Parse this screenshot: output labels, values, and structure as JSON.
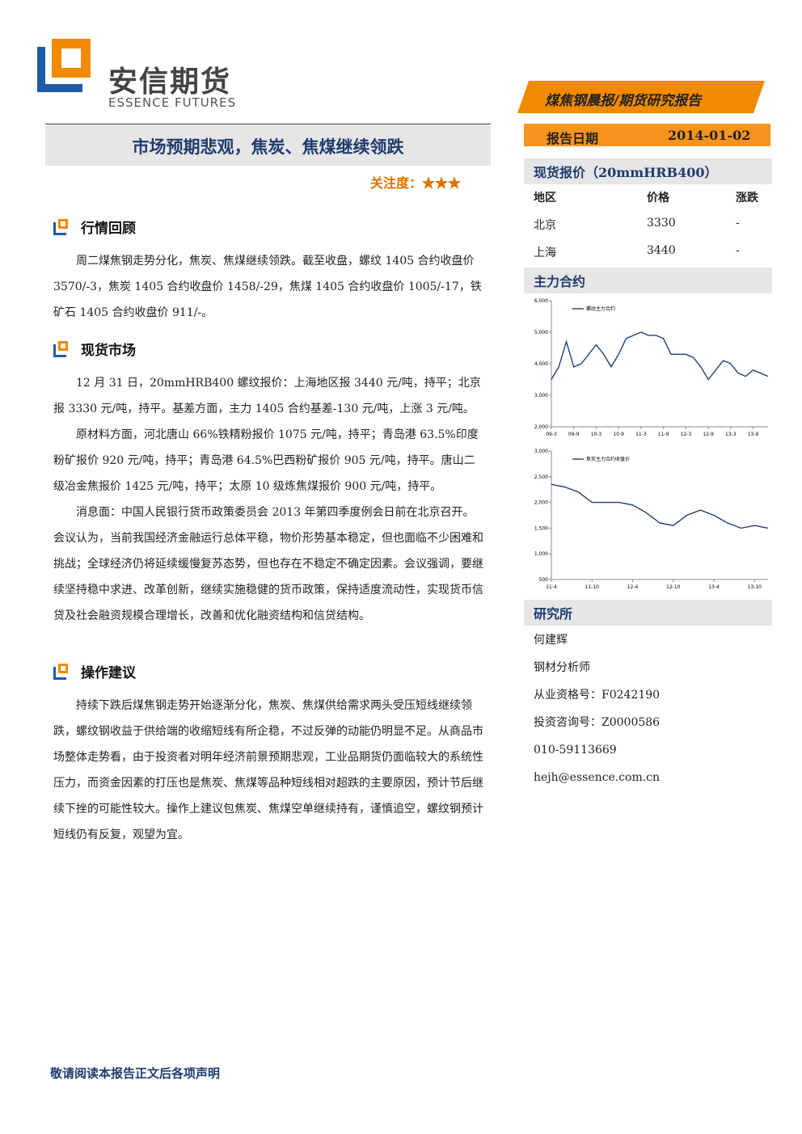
{
  "header": {
    "logo_cn": "安信期货",
    "logo_en": "ESSENCE FUTURES",
    "report_type": "煤焦钢晨报/期货研究报告",
    "date_label": "报告日期",
    "date": "2014-01-02"
  },
  "title": "市场预期悲观，焦炭、焦煤继续领跌",
  "attention": "关注度：★★★",
  "sections": [
    {
      "heading": "行情回顾",
      "paragraphs": [
        "周二煤焦钢走势分化，焦炭、焦煤继续领跌。截至收盘，螺纹 1405 合约收盘价 3570/-3，焦炭 1405 合约收盘价 1458/-29，焦煤 1405 合约收盘价 1005/-17，铁矿石 1405 合约收盘价 911/-。"
      ]
    },
    {
      "heading": "现货市场",
      "paragraphs": [
        "12 月 31 日，20mmHRB400 螺纹报价：上海地区报 3440 元/吨，持平；北京报 3330 元/吨，持平。基差方面，主力 1405 合约基差-130 元/吨，上涨 3 元/吨。",
        "原材料方面，河北唐山 66%铁精粉报价 1075 元/吨，持平；青岛港 63.5%印度粉矿报价 920 元/吨，持平；青岛港 64.5%巴西粉矿报价 905 元/吨，持平。唐山二级冶金焦报价 1425 元/吨，持平；太原 10 级炼焦煤报价 900 元/吨，持平。",
        "消息面：中国人民银行货币政策委员会 2013 年第四季度例会日前在北京召开。会议认为，当前我国经济金融运行总体平稳，物价形势基本稳定，但也面临不少困难和挑战；全球经济仍将延续缓慢复苏态势，但也存在不稳定不确定因素。会议强调，要继续坚持稳中求进、改革创新，继续实施稳健的货币政策，保持适度流动性，实现货币信贷及社会融资规模合理增长，改善和优化融资结构和信贷结构。"
      ]
    },
    {
      "heading": "操作建议",
      "paragraphs": [
        "持续下跌后煤焦钢走势开始逐渐分化，焦炭、焦煤供给需求两头受压短线继续领跌，螺纹钢收益于供给端的收缩短线有所企稳，不过反弹的动能仍明显不足。从商品市场整体走势看，由于投资者对明年经济前景预期悲观，工业品期货仍面临较大的系统性压力，而资金因素的打压也是焦炭、焦煤等品种短线相对超跌的主要原因，预计节后继续下挫的可能性较大。操作上建议包焦炭、焦煤空单继续持有，谨慎追空，螺纹钢预计短线仍有反复，观望为宜。"
      ]
    }
  ],
  "spot": {
    "heading": "现货报价（20mmHRB400）",
    "columns": [
      "地区",
      "价格",
      "涨跌"
    ],
    "rows": [
      [
        "北京",
        3330,
        "-"
      ],
      [
        "上海",
        3440,
        "-"
      ]
    ]
  },
  "contract_heading": "主力合约",
  "charts": [
    {
      "type": "line",
      "categories": [
        "09-3",
        null,
        null,
        "09-9",
        null,
        null,
        "10-3",
        null,
        null,
        "10-9",
        null,
        null,
        "11-3",
        null,
        null,
        "11-9",
        null,
        null,
        "12-3",
        null,
        null,
        "12-9",
        null,
        null,
        "13-3",
        null,
        null,
        "13-9",
        null,
        null
      ],
      "series": [
        {
          "name": "螺纹主力合约",
          "color": "#1f3f7a",
          "values": [
            3500,
            3900,
            4700,
            3900,
            4000,
            4300,
            4600,
            4300,
            3900,
            4300,
            4800,
            4900,
            5000,
            4900,
            4900,
            4800,
            4300,
            4300,
            4300,
            4200,
            3900,
            3500,
            3800,
            4100,
            4000,
            3700,
            3600,
            3800,
            3700,
            3600
          ]
        }
      ],
      "ylim": [
        2000,
        6000
      ],
      "yticks": [
        {
          "value": 2000,
          "label": "2,000"
        },
        {
          "value": 3000,
          "label": "3,000"
        },
        {
          "value": 4000,
          "label": "4,000"
        },
        {
          "value": 5000,
          "label": "5,000"
        },
        {
          "value": 6000,
          "label": "6,000"
        }
      ]
    },
    {
      "type": "line",
      "categories": [
        "11-4",
        null,
        null,
        "11-10",
        null,
        null,
        "12-4",
        null,
        null,
        "12-10",
        null,
        null,
        "13-4",
        null,
        null,
        "13-10",
        null
      ],
      "series": [
        {
          "name": "焦炭主力合约收盘价",
          "color": "#1f3f7a",
          "values": [
            2350,
            2300,
            2200,
            2000,
            2000,
            2000,
            1950,
            1800,
            1600,
            1550,
            1750,
            1850,
            1750,
            1600,
            1500,
            1550,
            1500
          ]
        }
      ],
      "ylim": [
        500,
        3000
      ],
      "yticks": [
        500,
        {
          "value": 1000,
          "label": "1,000"
        },
        {
          "value": 1500,
          "label": "1,500"
        },
        {
          "value": 2000,
          "label": "2,000"
        },
        {
          "value": 2500,
          "label": "2,500"
        },
        {
          "value": 3000,
          "label": "3,000"
        }
      ]
    }
  ],
  "research": {
    "heading": "研究所",
    "lines": [
      "何建辉",
      "钢材分析师",
      "从业资格号：F0242190",
      "投资咨询号：Z0000586",
      "010-59113669",
      "hejh@essence.com.cn"
    ]
  },
  "footer": "敬请阅读本报告正文后各项声明"
}
